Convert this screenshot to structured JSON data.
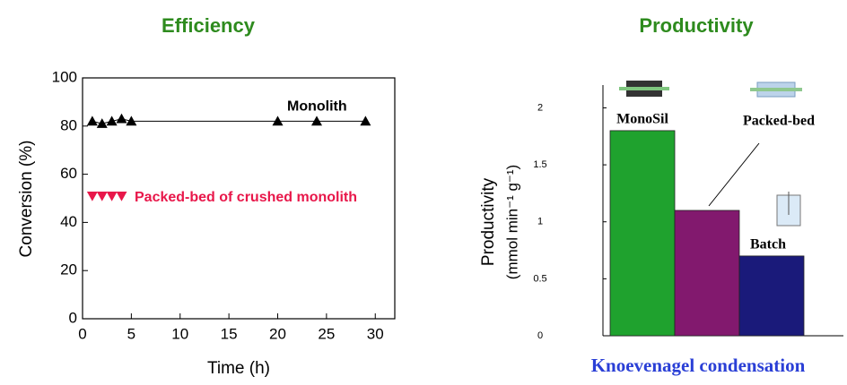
{
  "chart_data": [
    {
      "type": "scatter",
      "title": "Efficiency",
      "x_label": "Time (h)",
      "y_label": "Conversion (%)",
      "xlim": [
        0,
        32
      ],
      "xticks": [
        0,
        5,
        10,
        15,
        20,
        25,
        30
      ],
      "ylim": [
        0,
        100
      ],
      "yticks": [
        0,
        20,
        40,
        60,
        80,
        100
      ],
      "series": [
        {
          "name": "Monolith",
          "color": "#000000",
          "marker": "triangle-up",
          "line": true,
          "x": [
            1,
            2,
            3,
            4,
            5,
            20,
            24,
            29
          ],
          "values": [
            82,
            81,
            82,
            83,
            82,
            82,
            82,
            82
          ]
        },
        {
          "name": "Packed-bed of crushed monolith",
          "color": "#e8174a",
          "marker": "triangle-down",
          "line": false,
          "x": [
            1,
            2,
            3,
            4
          ],
          "values": [
            51,
            51,
            51,
            51
          ]
        }
      ]
    },
    {
      "type": "bar",
      "title": "Productivity",
      "x_label": "Knoevenagel condensation",
      "y_label": "Productivity",
      "y_label_unit": "(mmol min⁻¹ g⁻¹)",
      "categories": [
        "MonoSil",
        "Packed-bed",
        "Batch"
      ],
      "values": [
        1.8,
        1.1,
        0.7
      ],
      "colors": [
        "#1fa22e",
        "#82196e",
        "#1a1a7a"
      ],
      "ylim": [
        0,
        2.2
      ],
      "yticks": [
        0,
        0.5,
        1,
        1.5,
        2
      ]
    }
  ]
}
